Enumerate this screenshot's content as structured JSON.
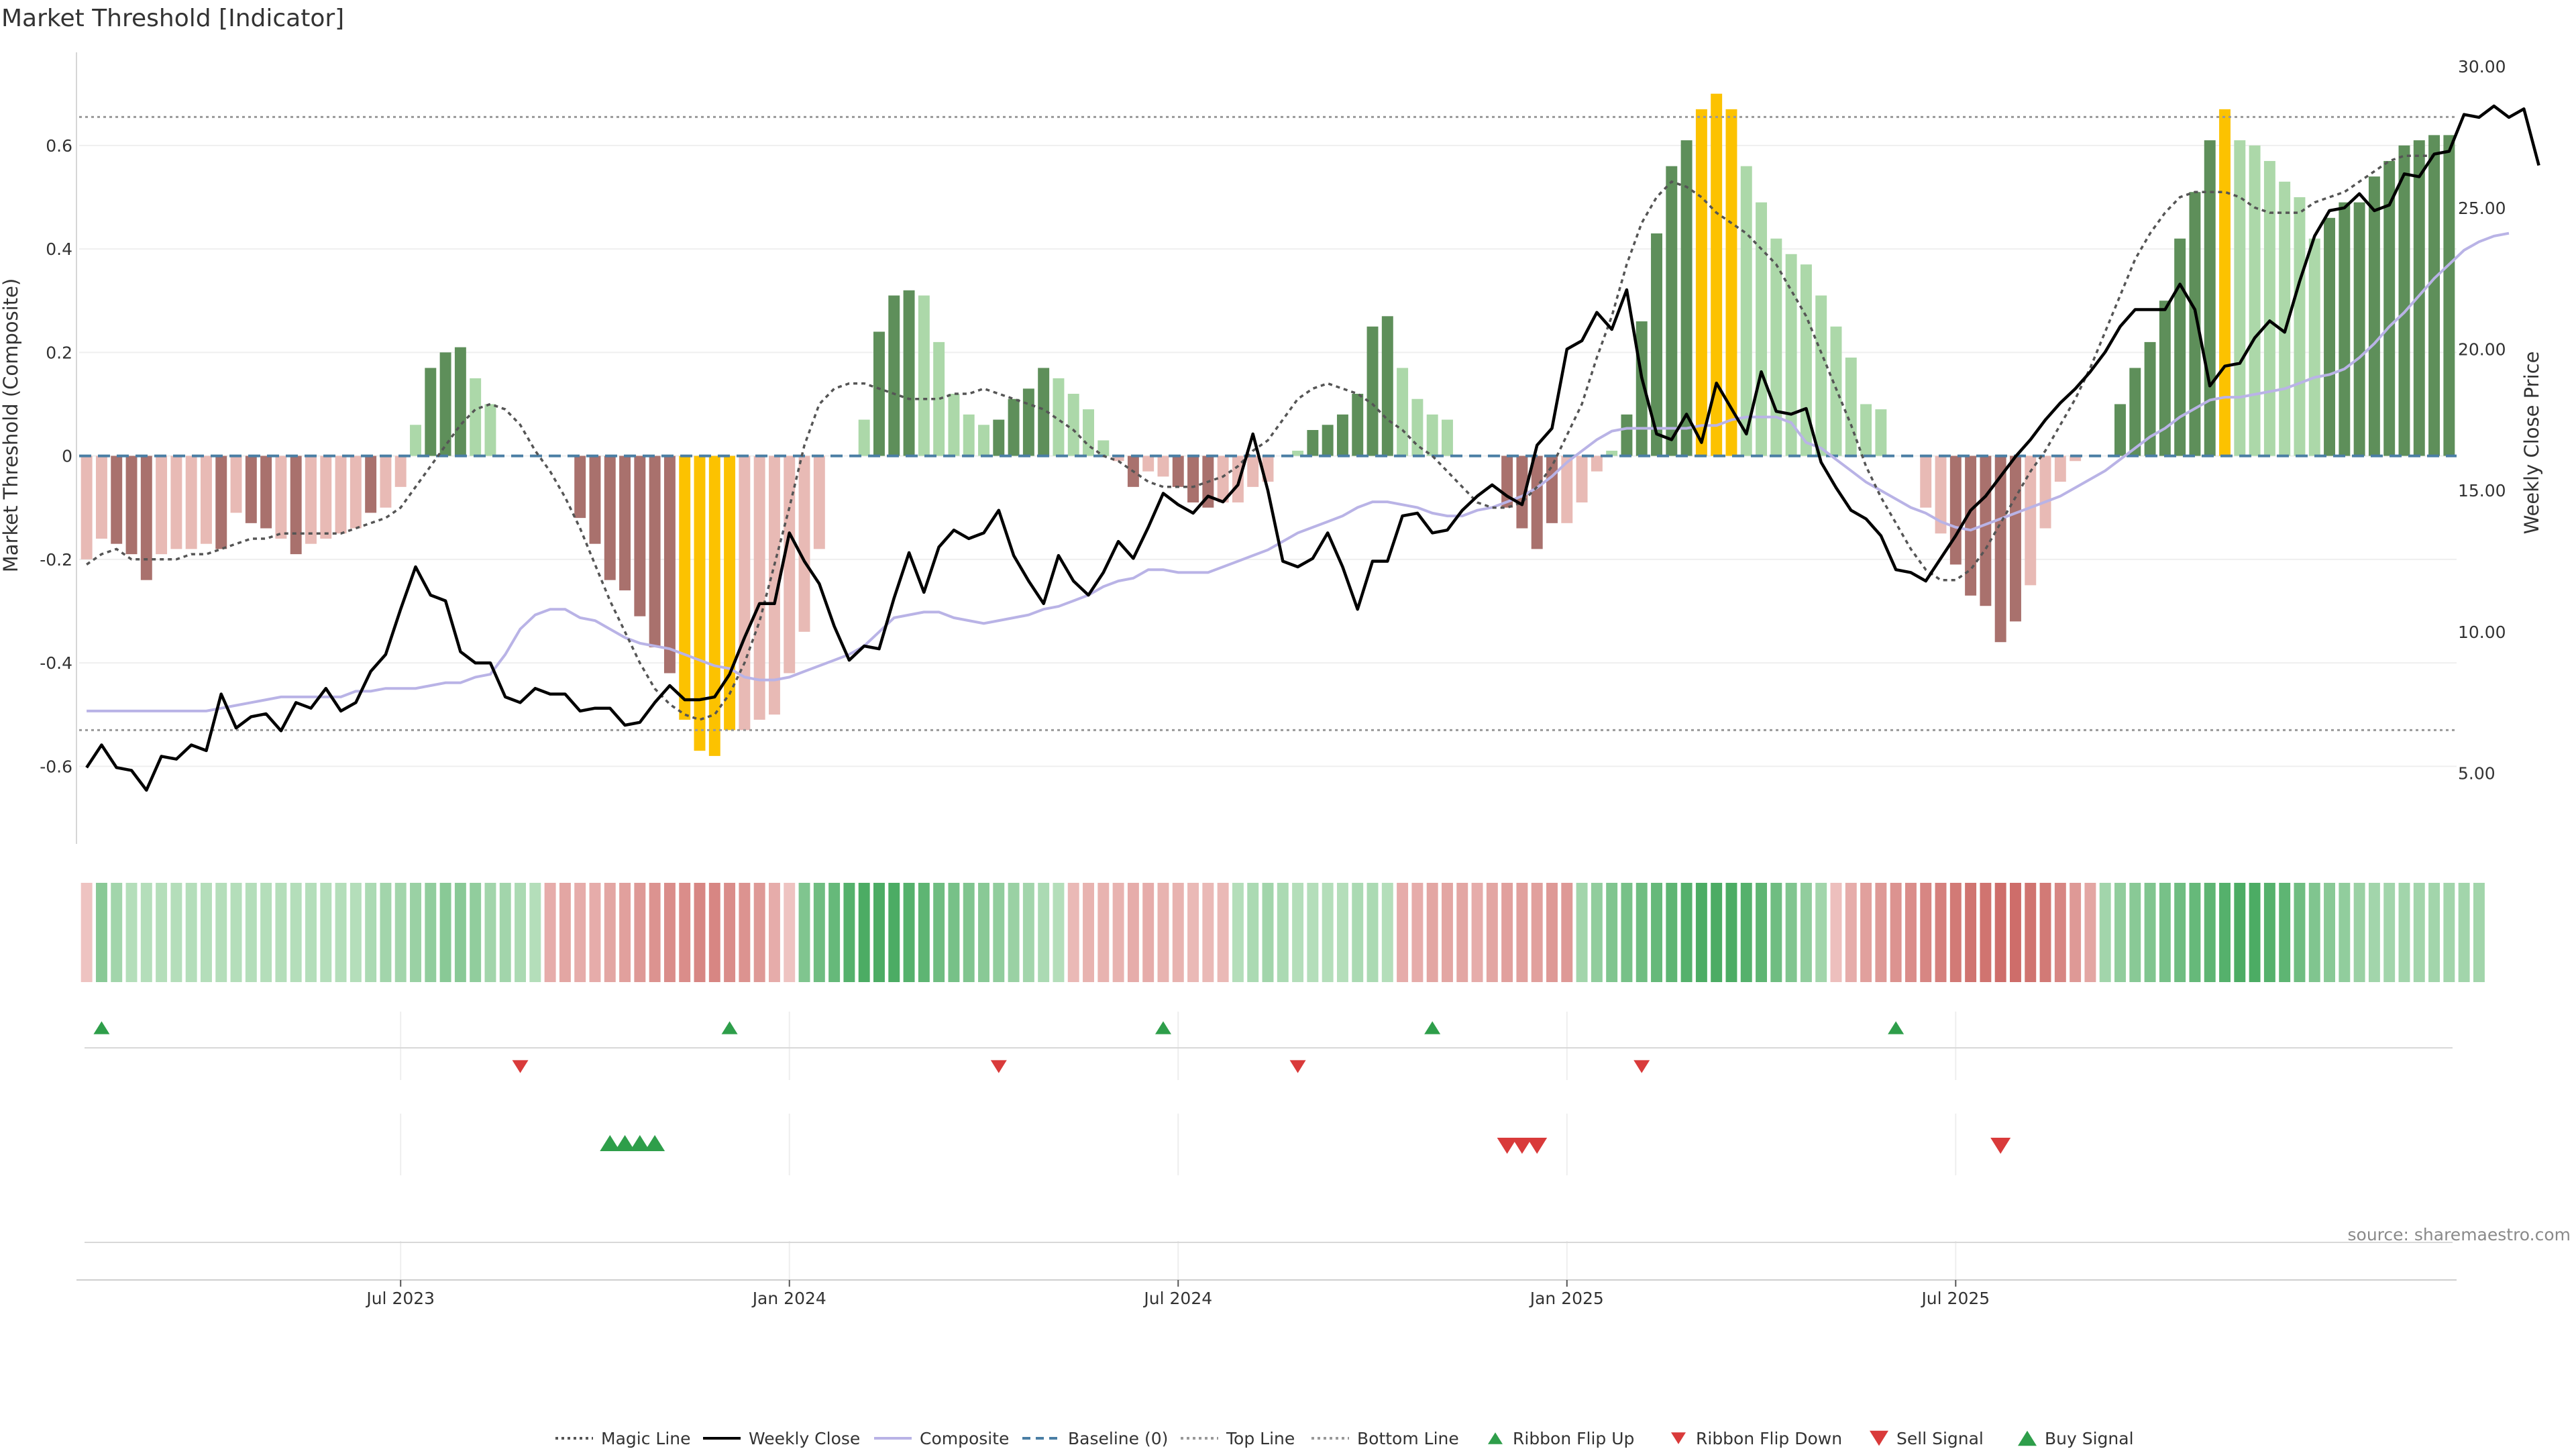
{
  "chart_data": {
    "type": "bar",
    "title": "Market Threshold [Indicator]",
    "ylabel_left": "Market Threshold (Composite)",
    "ylabel_right": "Weekly Close Price",
    "xlabel": "",
    "ylim_left": [
      -0.75,
      0.78
    ],
    "ylim_right": [
      2.5,
      30.5
    ],
    "yticks_left": [
      "0.6",
      "0.4",
      "0.2",
      "0",
      "-0.2",
      "-0.4",
      "-0.6"
    ],
    "yticks_left_values": [
      0.6,
      0.4,
      0.2,
      0,
      -0.2,
      -0.4,
      -0.6
    ],
    "yticks_right": [
      "30.00",
      "25.00",
      "20.00",
      "15.00",
      "10.00",
      "5.00"
    ],
    "yticks_right_values": [
      30,
      25,
      20,
      15,
      10,
      5
    ],
    "xticks": [
      "Jul 2023",
      "Jan 2024",
      "Jul 2024",
      "Jan 2025",
      "Jul 2025"
    ],
    "xticks_week_index": [
      21,
      47,
      73,
      99,
      125
    ],
    "grid": true,
    "legend_position": "bottom",
    "source": "source: sharemaestro.com",
    "colors": {
      "pos_strong": "#5e8f5a",
      "pos_light": "#acd8a9",
      "neg_strong": "#a9716d",
      "neg_light": "#e8bab5",
      "extreme": "#fcc200",
      "weekly_close": "#000000",
      "composite": "#b9b3e6",
      "magic": "#555555",
      "baseline": "#4a7ea4",
      "threshold_lines": "#999999",
      "signal_green": "#2e9e4a",
      "signal_red": "#d93a3a"
    },
    "top_line": 0.655,
    "bottom_line": -0.53,
    "composite_values": [
      -0.2,
      -0.16,
      -0.17,
      -0.19,
      -0.24,
      -0.19,
      -0.18,
      -0.18,
      -0.17,
      -0.18,
      -0.11,
      -0.13,
      -0.14,
      -0.16,
      -0.19,
      -0.17,
      -0.16,
      -0.15,
      -0.14,
      -0.11,
      -0.1,
      -0.06,
      0.06,
      0.17,
      0.2,
      0.21,
      0.15,
      0.1,
      0,
      0,
      0,
      0,
      0,
      -0.12,
      -0.17,
      -0.24,
      -0.26,
      -0.31,
      -0.37,
      -0.42,
      -0.51,
      -0.57,
      -0.58,
      -0.53,
      -0.53,
      -0.51,
      -0.5,
      -0.42,
      -0.34,
      -0.18,
      0,
      0,
      0.07,
      0.24,
      0.31,
      0.32,
      0.31,
      0.22,
      0.12,
      0.08,
      0.06,
      0.07,
      0.11,
      0.13,
      0.17,
      0.15,
      0.12,
      0.09,
      0.03,
      -0.01,
      -0.06,
      -0.03,
      -0.04,
      -0.06,
      -0.09,
      -0.1,
      -0.09,
      -0.09,
      -0.06,
      -0.05,
      0,
      0.01,
      0.05,
      0.06,
      0.08,
      0.12,
      0.25,
      0.27,
      0.17,
      0.11,
      0.08,
      0.07,
      0,
      0,
      0,
      -0.1,
      -0.14,
      -0.18,
      -0.13,
      -0.13,
      -0.09,
      -0.03,
      0.01,
      0.08,
      0.26,
      0.43,
      0.56,
      0.61,
      0.67,
      0.7,
      0.67,
      0.56,
      0.49,
      0.42,
      0.39,
      0.37,
      0.31,
      0.25,
      0.19,
      0.1,
      0.09,
      0,
      0,
      -0.1,
      -0.15,
      -0.21,
      -0.27,
      -0.29,
      -0.36,
      -0.32,
      -0.25,
      -0.14,
      -0.05,
      -0.01,
      0,
      0,
      0.1,
      0.17,
      0.22,
      0.3,
      0.42,
      0.51,
      0.61,
      0.67,
      0.61,
      0.6,
      0.57,
      0.53,
      0.5,
      0.42,
      0.46,
      0.49,
      0.49,
      0.54,
      0.57,
      0.6,
      0.61,
      0.62,
      0.62
    ],
    "composite_bar_style": [
      "nl",
      "nl",
      "ns",
      "ns",
      "ns",
      "nl",
      "nl",
      "nl",
      "nl",
      "ns",
      "nl",
      "ns",
      "ns",
      "nl",
      "ns",
      "nl",
      "nl",
      "nl",
      "nl",
      "ns",
      "nl",
      "nl",
      "pl",
      "ps",
      "ps",
      "ps",
      "pl",
      "pl",
      "pl",
      "pl",
      "pl",
      "pl",
      "pl",
      "ns",
      "ns",
      "ns",
      "ns",
      "ns",
      "ns",
      "ns",
      "ex",
      "ex",
      "ex",
      "ex",
      "nl",
      "nl",
      "nl",
      "nl",
      "nl",
      "nl",
      "pl",
      "pl",
      "pl",
      "ps",
      "ps",
      "ps",
      "pl",
      "pl",
      "pl",
      "pl",
      "pl",
      "ps",
      "ps",
      "ps",
      "ps",
      "pl",
      "pl",
      "pl",
      "pl",
      "nl",
      "ns",
      "nl",
      "nl",
      "ns",
      "ns",
      "ns",
      "nl",
      "nl",
      "nl",
      "nl",
      "pl",
      "pl",
      "ps",
      "ps",
      "ps",
      "ps",
      "ps",
      "ps",
      "pl",
      "pl",
      "pl",
      "pl",
      "pl",
      "pl",
      "pl",
      "ns",
      "ns",
      "ns",
      "ns",
      "nl",
      "nl",
      "nl",
      "pl",
      "ps",
      "ps",
      "ps",
      "ps",
      "ps",
      "ex",
      "ex",
      "ex",
      "pl",
      "pl",
      "pl",
      "pl",
      "pl",
      "pl",
      "pl",
      "pl",
      "pl",
      "pl",
      "pl",
      "pl",
      "nl",
      "nl",
      "ns",
      "ns",
      "ns",
      "ns",
      "ns",
      "nl",
      "nl",
      "nl",
      "nl",
      "pl",
      "ps",
      "ps",
      "ps",
      "ps",
      "ps",
      "ps",
      "ps",
      "ps",
      "ex",
      "pl",
      "pl",
      "pl",
      "pl",
      "pl",
      "pl",
      "ps",
      "ps",
      "ps",
      "ps",
      "ps",
      "ps",
      "ps",
      "ps",
      "ps",
      "ps"
    ],
    "weekly_close": [
      5.2,
      6,
      5.2,
      5.1,
      4.4,
      5.6,
      5.5,
      6,
      5.8,
      7.8,
      6.6,
      7,
      7.1,
      6.5,
      7.5,
      7.3,
      8,
      7.2,
      7.5,
      8.6,
      9.2,
      10.8,
      12.3,
      11.3,
      11.1,
      9.3,
      8.9,
      8.9,
      7.7,
      7.5,
      8,
      7.8,
      7.8,
      7.2,
      7.3,
      7.3,
      6.7,
      6.8,
      7.5,
      8.1,
      7.6,
      7.6,
      7.7,
      8.5,
      9.8,
      11,
      11,
      13.5,
      12.5,
      11.7,
      10.2,
      9,
      9.5,
      9.4,
      11.2,
      12.8,
      11.4,
      13,
      13.6,
      13.3,
      13.5,
      14.3,
      12.7,
      11.8,
      11,
      12.7,
      11.8,
      11.3,
      12.1,
      13.2,
      12.6,
      13.7,
      14.9,
      14.5,
      14.2,
      14.8,
      14.6,
      15.2,
      17,
      15,
      12.5,
      12.3,
      12.6,
      13.5,
      12.3,
      10.8,
      12.5,
      12.5,
      14.1,
      14.2,
      13.5,
      13.6,
      14.3,
      14.8,
      15.2,
      14.8,
      14.5,
      16.6,
      17.2,
      20,
      20.3,
      21.3,
      20.7,
      22.1,
      19,
      17,
      16.8,
      17.7,
      16.7,
      18.8,
      17.9,
      17,
      19.2,
      17.8,
      17.7,
      17.9,
      16,
      15.1,
      14.3,
      14,
      13.4,
      12.2,
      12.1,
      11.8,
      12.6,
      13.4,
      14.3,
      14.8,
      15.5,
      16.2,
      16.8,
      17.5,
      18.1,
      18.6,
      19.2,
      19.9,
      20.8,
      21.4,
      21.4,
      21.4,
      22.3,
      21.4,
      18.7,
      19.4,
      19.5,
      20.4,
      21,
      20.6,
      22.4,
      24,
      24.9,
      25,
      25.5,
      24.9,
      25.1,
      26.2,
      26.1,
      26.9,
      27,
      28.3,
      28.2,
      28.6,
      28.2,
      28.5,
      26.5
    ],
    "composite_line": [
      7.2,
      7.2,
      7.2,
      7.2,
      7.2,
      7.2,
      7.2,
      7.2,
      7.2,
      7.3,
      7.4,
      7.5,
      7.6,
      7.7,
      7.7,
      7.7,
      7.7,
      7.7,
      7.9,
      7.9,
      8.0,
      8.0,
      8.0,
      8.1,
      8.2,
      8.2,
      8.4,
      8.5,
      9.2,
      10.1,
      10.6,
      10.8,
      10.8,
      10.5,
      10.4,
      10.1,
      9.8,
      9.6,
      9.5,
      9.4,
      9.2,
      9.0,
      8.8,
      8.7,
      8.4,
      8.3,
      8.3,
      8.4,
      8.6,
      8.8,
      9.0,
      9.2,
      9.5,
      10.0,
      10.5,
      10.6,
      10.7,
      10.7,
      10.5,
      10.4,
      10.3,
      10.4,
      10.5,
      10.6,
      10.8,
      10.9,
      11.1,
      11.3,
      11.6,
      11.8,
      11.9,
      12.2,
      12.2,
      12.1,
      12.1,
      12.1,
      12.3,
      12.5,
      12.7,
      12.9,
      13.2,
      13.5,
      13.7,
      13.9,
      14.1,
      14.4,
      14.6,
      14.6,
      14.5,
      14.4,
      14.2,
      14.1,
      14.1,
      14.3,
      14.4,
      14.6,
      14.8,
      15.1,
      15.5,
      16.0,
      16.4,
      16.8,
      17.1,
      17.2,
      17.2,
      17.2,
      17.2,
      17.2,
      17.3,
      17.3,
      17.5,
      17.6,
      17.6,
      17.6,
      17.4,
      16.7,
      16.5,
      16.1,
      15.7,
      15.3,
      15.0,
      14.7,
      14.4,
      14.2,
      13.9,
      13.7,
      13.6,
      13.8,
      14.0,
      14.2,
      14.4,
      14.6,
      14.8,
      15.1,
      15.4,
      15.7,
      16.1,
      16.5,
      16.9,
      17.2,
      17.6,
      17.9,
      18.2,
      18.3,
      18.3,
      18.4,
      18.5,
      18.6,
      18.8,
      19.0,
      19.1,
      19.3,
      19.7,
      20.2,
      20.8,
      21.3,
      21.9,
      22.5,
      23.0,
      23.5,
      23.8,
      24.0,
      24.1
    ],
    "magic_line": [
      -0.21,
      -0.19,
      -0.18,
      -0.2,
      -0.2,
      -0.2,
      -0.2,
      -0.19,
      -0.19,
      -0.18,
      -0.17,
      -0.16,
      -0.16,
      -0.15,
      -0.15,
      -0.15,
      -0.15,
      -0.15,
      -0.14,
      -0.13,
      -0.12,
      -0.1,
      -0.06,
      -0.02,
      0.02,
      0.06,
      0.09,
      0.1,
      0.09,
      0.06,
      0.01,
      -0.03,
      -0.08,
      -0.14,
      -0.21,
      -0.28,
      -0.34,
      -0.4,
      -0.45,
      -0.48,
      -0.5,
      -0.51,
      -0.5,
      -0.46,
      -0.4,
      -0.32,
      -0.21,
      -0.1,
      0.02,
      0.1,
      0.13,
      0.14,
      0.14,
      0.13,
      0.12,
      0.11,
      0.11,
      0.11,
      0.12,
      0.12,
      0.13,
      0.12,
      0.11,
      0.1,
      0.09,
      0.07,
      0.05,
      0.02,
      0,
      -0.01,
      -0.03,
      -0.05,
      -0.06,
      -0.06,
      -0.06,
      -0.05,
      -0.04,
      -0.02,
      0.01,
      0.03,
      0.07,
      0.11,
      0.13,
      0.14,
      0.13,
      0.12,
      0.1,
      0.07,
      0.05,
      0.02,
      0,
      -0.03,
      -0.06,
      -0.09,
      -0.1,
      -0.1,
      -0.09,
      -0.06,
      -0.02,
      0.04,
      0.1,
      0.19,
      0.27,
      0.37,
      0.45,
      0.5,
      0.53,
      0.52,
      0.5,
      0.47,
      0.45,
      0.43,
      0.4,
      0.37,
      0.32,
      0.27,
      0.2,
      0.13,
      0.06,
      -0.02,
      -0.08,
      -0.13,
      -0.18,
      -0.22,
      -0.24,
      -0.24,
      -0.22,
      -0.18,
      -0.13,
      -0.08,
      -0.03,
      0.01,
      0.06,
      0.11,
      0.17,
      0.24,
      0.31,
      0.38,
      0.43,
      0.47,
      0.5,
      0.51,
      0.51,
      0.51,
      0.5,
      0.48,
      0.47,
      0.47,
      0.47,
      0.49,
      0.5,
      0.51,
      0.53,
      0.55,
      0.57,
      0.58,
      0.58,
      0.58
    ],
    "ribbon_values": [
      -0.05,
      0.45,
      0.3,
      0.2,
      0.2,
      0.2,
      0.2,
      0.2,
      0.2,
      0.2,
      0.2,
      0.2,
      0.2,
      0.2,
      0.2,
      0.2,
      0.2,
      0.2,
      0.2,
      0.25,
      0.3,
      0.3,
      0.35,
      0.4,
      0.45,
      0.45,
      0.4,
      0.3,
      0.3,
      0.25,
      0.2,
      -0.3,
      -0.35,
      -0.3,
      -0.3,
      -0.35,
      -0.4,
      -0.45,
      -0.5,
      -0.55,
      -0.55,
      -0.6,
      -0.6,
      -0.55,
      -0.5,
      -0.45,
      -0.3,
      -0.05,
      0.5,
      0.6,
      0.65,
      0.75,
      0.8,
      0.8,
      0.8,
      0.75,
      0.7,
      0.6,
      0.55,
      0.5,
      0.45,
      0.4,
      0.35,
      0.3,
      0.25,
      0.2,
      -0.2,
      -0.25,
      -0.25,
      -0.25,
      -0.3,
      -0.3,
      -0.25,
      -0.25,
      -0.2,
      -0.2,
      -0.2,
      0.2,
      0.25,
      0.3,
      0.25,
      0.2,
      0.2,
      0.2,
      0.2,
      0.25,
      0.25,
      0.2,
      -0.3,
      -0.3,
      -0.35,
      -0.35,
      -0.35,
      -0.3,
      -0.35,
      -0.4,
      -0.4,
      -0.4,
      -0.45,
      -0.45,
      0.3,
      0.4,
      0.5,
      0.55,
      0.6,
      0.65,
      0.7,
      0.75,
      0.8,
      0.8,
      0.8,
      0.75,
      0.7,
      0.6,
      0.5,
      0.4,
      0.3,
      -0.15,
      -0.3,
      -0.4,
      -0.45,
      -0.5,
      -0.55,
      -0.6,
      -0.65,
      -0.7,
      -0.75,
      -0.75,
      -0.8,
      -0.8,
      -0.75,
      -0.7,
      -0.6,
      -0.45,
      -0.35,
      0.3,
      0.4,
      0.45,
      0.5,
      0.55,
      0.6,
      0.65,
      0.7,
      0.75,
      0.8,
      0.8,
      0.75,
      0.7,
      0.6,
      0.5,
      0.45,
      0.4,
      0.35,
      0.3,
      0.3,
      0.3,
      0.3,
      0.3,
      0.3,
      0.3,
      0.3
    ],
    "ribbon_flip_up_weeks": [
      1,
      43,
      72,
      90,
      121
    ],
    "ribbon_flip_down_weeks": [
      29,
      61,
      81,
      104
    ],
    "buy_signal_weeks": [
      35,
      36,
      37,
      38
    ],
    "sell_signal_weeks": [
      95,
      96,
      97,
      128
    ],
    "legend": [
      {
        "label": "Magic Line",
        "symbol": "dotted-line",
        "color": "#555555"
      },
      {
        "label": "Weekly Close",
        "symbol": "solid-line",
        "color": "#000000"
      },
      {
        "label": "Composite",
        "symbol": "solid-line",
        "color": "#b9b3e6"
      },
      {
        "label": "Baseline (0)",
        "symbol": "dashed-line",
        "color": "#4a7ea4"
      },
      {
        "label": "Top Line",
        "symbol": "dotted-line",
        "color": "#999999"
      },
      {
        "label": "Bottom Line",
        "symbol": "dotted-line",
        "color": "#999999"
      },
      {
        "label": "Ribbon Flip Up",
        "symbol": "triangle-up-small",
        "color": "#2e9e4a"
      },
      {
        "label": "Ribbon Flip Down",
        "symbol": "triangle-down-small",
        "color": "#d93a3a"
      },
      {
        "label": "Sell Signal",
        "symbol": "triangle-down",
        "color": "#d93a3a"
      },
      {
        "label": "Buy Signal",
        "symbol": "triangle-up",
        "color": "#2e9e4a"
      }
    ]
  }
}
